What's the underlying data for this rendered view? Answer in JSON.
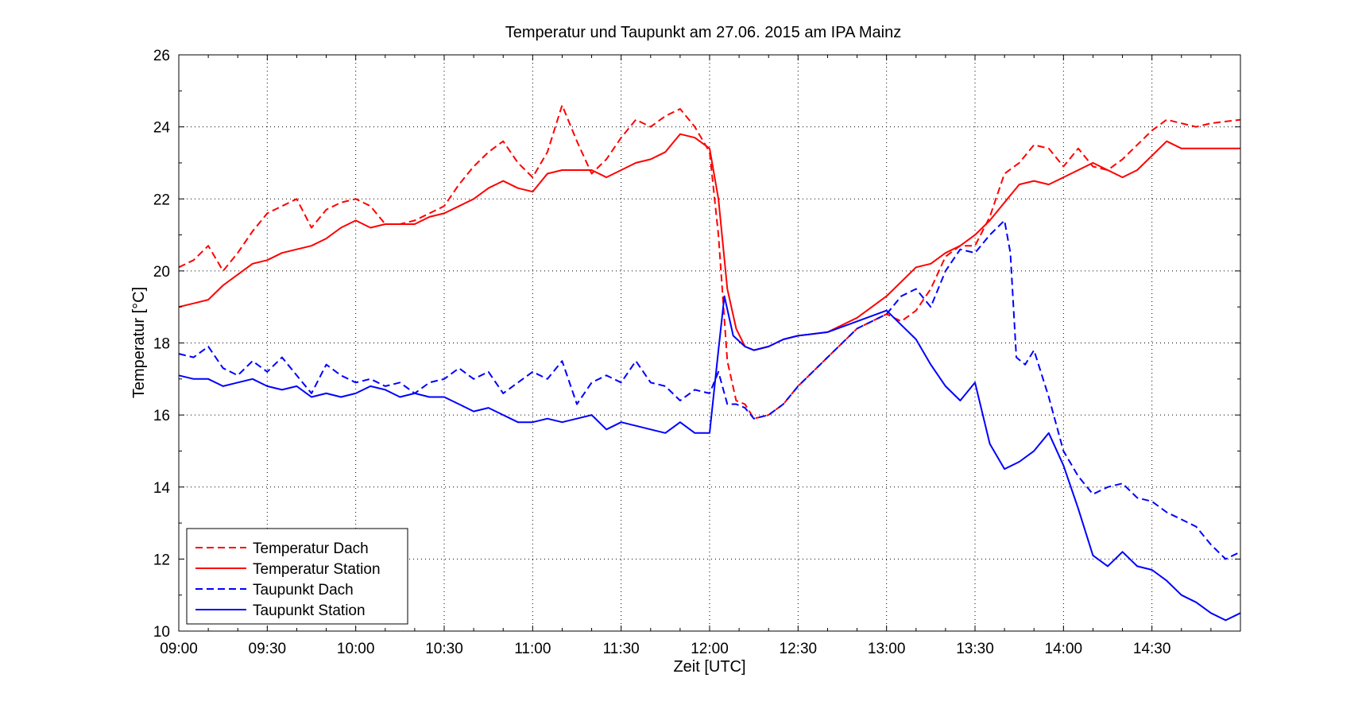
{
  "chart_data": {
    "type": "line",
    "title": "Temperatur und Taupunkt am 27.06. 2015 am IPA Mainz",
    "xlabel": "Zeit [UTC]",
    "ylabel": "Temperatur [°C]",
    "xlim": [
      "09:00",
      "15:00"
    ],
    "ylim": [
      10,
      26
    ],
    "x_ticks": [
      "09:00",
      "09:30",
      "10:00",
      "10:30",
      "11:00",
      "11:30",
      "12:00",
      "12:30",
      "13:00",
      "13:30",
      "14:00",
      "14:30"
    ],
    "y_ticks": [
      10,
      12,
      14,
      16,
      18,
      20,
      22,
      24,
      26
    ],
    "grid": true,
    "legend_position": "bottom-left",
    "series": [
      {
        "name": "Temperatur Dach",
        "color": "#ff0000",
        "style": "dashed",
        "points": [
          [
            "09:00",
            20.1
          ],
          [
            "09:05",
            20.3
          ],
          [
            "09:10",
            20.7
          ],
          [
            "09:15",
            20.0
          ],
          [
            "09:20",
            20.5
          ],
          [
            "09:25",
            21.1
          ],
          [
            "09:30",
            21.6
          ],
          [
            "09:35",
            21.8
          ],
          [
            "09:40",
            22.0
          ],
          [
            "09:45",
            21.2
          ],
          [
            "09:50",
            21.7
          ],
          [
            "09:55",
            21.9
          ],
          [
            "10:00",
            22.0
          ],
          [
            "10:05",
            21.8
          ],
          [
            "10:10",
            21.3
          ],
          [
            "10:15",
            21.3
          ],
          [
            "10:20",
            21.4
          ],
          [
            "10:25",
            21.6
          ],
          [
            "10:30",
            21.8
          ],
          [
            "10:35",
            22.4
          ],
          [
            "10:40",
            22.9
          ],
          [
            "10:45",
            23.3
          ],
          [
            "10:50",
            23.6
          ],
          [
            "10:55",
            23.0
          ],
          [
            "11:00",
            22.6
          ],
          [
            "11:05",
            23.3
          ],
          [
            "11:10",
            24.6
          ],
          [
            "11:15",
            23.6
          ],
          [
            "11:20",
            22.7
          ],
          [
            "11:25",
            23.1
          ],
          [
            "11:30",
            23.7
          ],
          [
            "11:35",
            24.2
          ],
          [
            "11:40",
            24.0
          ],
          [
            "11:45",
            24.3
          ],
          [
            "11:50",
            24.5
          ],
          [
            "11:55",
            24.0
          ],
          [
            "12:00",
            23.3
          ],
          [
            "12:03",
            21.0
          ],
          [
            "12:06",
            17.5
          ],
          [
            "12:09",
            16.4
          ],
          [
            "12:12",
            16.3
          ],
          [
            "12:15",
            15.9
          ],
          [
            "12:20",
            16.0
          ],
          [
            "12:25",
            16.3
          ],
          [
            "12:30",
            16.8
          ],
          [
            "12:40",
            17.6
          ],
          [
            "12:50",
            18.4
          ],
          [
            "13:00",
            18.8
          ],
          [
            "13:05",
            18.6
          ],
          [
            "13:10",
            18.9
          ],
          [
            "13:15",
            19.5
          ],
          [
            "13:20",
            20.4
          ],
          [
            "13:25",
            20.7
          ],
          [
            "13:30",
            20.7
          ],
          [
            "13:35",
            21.5
          ],
          [
            "13:40",
            22.7
          ],
          [
            "13:45",
            23.0
          ],
          [
            "13:50",
            23.5
          ],
          [
            "13:55",
            23.4
          ],
          [
            "14:00",
            22.9
          ],
          [
            "14:05",
            23.4
          ],
          [
            "14:10",
            22.9
          ],
          [
            "14:15",
            22.8
          ],
          [
            "14:20",
            23.1
          ],
          [
            "14:25",
            23.5
          ],
          [
            "14:30",
            23.9
          ],
          [
            "14:35",
            24.2
          ],
          [
            "14:40",
            24.1
          ],
          [
            "14:45",
            24.0
          ],
          [
            "14:50",
            24.1
          ],
          [
            "15:00",
            24.2
          ]
        ]
      },
      {
        "name": "Temperatur Station",
        "color": "#ff0000",
        "style": "solid",
        "points": [
          [
            "09:00",
            19.0
          ],
          [
            "09:05",
            19.1
          ],
          [
            "09:10",
            19.2
          ],
          [
            "09:15",
            19.6
          ],
          [
            "09:20",
            19.9
          ],
          [
            "09:25",
            20.2
          ],
          [
            "09:30",
            20.3
          ],
          [
            "09:35",
            20.5
          ],
          [
            "09:40",
            20.6
          ],
          [
            "09:45",
            20.7
          ],
          [
            "09:50",
            20.9
          ],
          [
            "09:55",
            21.2
          ],
          [
            "10:00",
            21.4
          ],
          [
            "10:05",
            21.2
          ],
          [
            "10:10",
            21.3
          ],
          [
            "10:15",
            21.3
          ],
          [
            "10:20",
            21.3
          ],
          [
            "10:25",
            21.5
          ],
          [
            "10:30",
            21.6
          ],
          [
            "10:35",
            21.8
          ],
          [
            "10:40",
            22.0
          ],
          [
            "10:45",
            22.3
          ],
          [
            "10:50",
            22.5
          ],
          [
            "10:55",
            22.3
          ],
          [
            "11:00",
            22.2
          ],
          [
            "11:05",
            22.7
          ],
          [
            "11:10",
            22.8
          ],
          [
            "11:15",
            22.8
          ],
          [
            "11:20",
            22.8
          ],
          [
            "11:25",
            22.6
          ],
          [
            "11:30",
            22.8
          ],
          [
            "11:35",
            23.0
          ],
          [
            "11:40",
            23.1
          ],
          [
            "11:45",
            23.3
          ],
          [
            "11:50",
            23.8
          ],
          [
            "11:55",
            23.7
          ],
          [
            "12:00",
            23.4
          ],
          [
            "12:03",
            22.0
          ],
          [
            "12:06",
            19.5
          ],
          [
            "12:09",
            18.4
          ],
          [
            "12:12",
            17.9
          ],
          [
            "12:15",
            17.8
          ],
          [
            "12:20",
            17.9
          ],
          [
            "12:25",
            18.1
          ],
          [
            "12:30",
            18.2
          ],
          [
            "12:40",
            18.3
          ],
          [
            "12:50",
            18.7
          ],
          [
            "13:00",
            19.3
          ],
          [
            "13:05",
            19.7
          ],
          [
            "13:10",
            20.1
          ],
          [
            "13:15",
            20.2
          ],
          [
            "13:20",
            20.5
          ],
          [
            "13:25",
            20.7
          ],
          [
            "13:30",
            21.0
          ],
          [
            "13:35",
            21.4
          ],
          [
            "13:40",
            21.9
          ],
          [
            "13:45",
            22.4
          ],
          [
            "13:50",
            22.5
          ],
          [
            "13:55",
            22.4
          ],
          [
            "14:00",
            22.6
          ],
          [
            "14:05",
            22.8
          ],
          [
            "14:10",
            23.0
          ],
          [
            "14:15",
            22.8
          ],
          [
            "14:20",
            22.6
          ],
          [
            "14:25",
            22.8
          ],
          [
            "14:30",
            23.2
          ],
          [
            "14:35",
            23.6
          ],
          [
            "14:40",
            23.4
          ],
          [
            "14:45",
            23.4
          ],
          [
            "14:50",
            23.4
          ],
          [
            "15:00",
            23.4
          ]
        ]
      },
      {
        "name": "Taupunkt Dach",
        "color": "#0000ff",
        "style": "dashed",
        "points": [
          [
            "09:00",
            17.7
          ],
          [
            "09:05",
            17.6
          ],
          [
            "09:10",
            17.9
          ],
          [
            "09:15",
            17.3
          ],
          [
            "09:20",
            17.1
          ],
          [
            "09:25",
            17.5
          ],
          [
            "09:30",
            17.2
          ],
          [
            "09:35",
            17.6
          ],
          [
            "09:40",
            17.1
          ],
          [
            "09:45",
            16.6
          ],
          [
            "09:50",
            17.4
          ],
          [
            "09:55",
            17.1
          ],
          [
            "10:00",
            16.9
          ],
          [
            "10:05",
            17.0
          ],
          [
            "10:10",
            16.8
          ],
          [
            "10:15",
            16.9
          ],
          [
            "10:20",
            16.6
          ],
          [
            "10:25",
            16.9
          ],
          [
            "10:30",
            17.0
          ],
          [
            "10:35",
            17.3
          ],
          [
            "10:40",
            17.0
          ],
          [
            "10:45",
            17.2
          ],
          [
            "10:50",
            16.6
          ],
          [
            "10:55",
            16.9
          ],
          [
            "11:00",
            17.2
          ],
          [
            "11:05",
            17.0
          ],
          [
            "11:10",
            17.5
          ],
          [
            "11:15",
            16.3
          ],
          [
            "11:20",
            16.9
          ],
          [
            "11:25",
            17.1
          ],
          [
            "11:30",
            16.9
          ],
          [
            "11:35",
            17.5
          ],
          [
            "11:40",
            16.9
          ],
          [
            "11:45",
            16.8
          ],
          [
            "11:50",
            16.4
          ],
          [
            "11:55",
            16.7
          ],
          [
            "12:00",
            16.6
          ],
          [
            "12:03",
            17.2
          ],
          [
            "12:06",
            16.3
          ],
          [
            "12:09",
            16.3
          ],
          [
            "12:12",
            16.2
          ],
          [
            "12:15",
            15.9
          ],
          [
            "12:20",
            16.0
          ],
          [
            "12:25",
            16.3
          ],
          [
            "12:30",
            16.8
          ],
          [
            "12:40",
            17.6
          ],
          [
            "12:50",
            18.4
          ],
          [
            "13:00",
            18.8
          ],
          [
            "13:05",
            19.3
          ],
          [
            "13:10",
            19.5
          ],
          [
            "13:15",
            19.0
          ],
          [
            "13:20",
            20.0
          ],
          [
            "13:25",
            20.6
          ],
          [
            "13:30",
            20.5
          ],
          [
            "13:35",
            21.0
          ],
          [
            "13:40",
            21.4
          ],
          [
            "13:42",
            20.5
          ],
          [
            "13:44",
            17.6
          ],
          [
            "13:47",
            17.4
          ],
          [
            "13:50",
            17.8
          ],
          [
            "13:55",
            16.5
          ],
          [
            "14:00",
            15.0
          ],
          [
            "14:05",
            14.3
          ],
          [
            "14:10",
            13.8
          ],
          [
            "14:15",
            14.0
          ],
          [
            "14:20",
            14.1
          ],
          [
            "14:25",
            13.7
          ],
          [
            "14:30",
            13.6
          ],
          [
            "14:35",
            13.3
          ],
          [
            "14:40",
            13.1
          ],
          [
            "14:45",
            12.9
          ],
          [
            "14:50",
            12.4
          ],
          [
            "14:55",
            12.0
          ],
          [
            "15:00",
            12.2
          ]
        ]
      },
      {
        "name": "Taupunkt Station",
        "color": "#0000ff",
        "style": "solid",
        "points": [
          [
            "09:00",
            17.1
          ],
          [
            "09:05",
            17.0
          ],
          [
            "09:10",
            17.0
          ],
          [
            "09:15",
            16.8
          ],
          [
            "09:20",
            16.9
          ],
          [
            "09:25",
            17.0
          ],
          [
            "09:30",
            16.8
          ],
          [
            "09:35",
            16.7
          ],
          [
            "09:40",
            16.8
          ],
          [
            "09:45",
            16.5
          ],
          [
            "09:50",
            16.6
          ],
          [
            "09:55",
            16.5
          ],
          [
            "10:00",
            16.6
          ],
          [
            "10:05",
            16.8
          ],
          [
            "10:10",
            16.7
          ],
          [
            "10:15",
            16.5
          ],
          [
            "10:20",
            16.6
          ],
          [
            "10:25",
            16.5
          ],
          [
            "10:30",
            16.5
          ],
          [
            "10:35",
            16.3
          ],
          [
            "10:40",
            16.1
          ],
          [
            "10:45",
            16.2
          ],
          [
            "10:50",
            16.0
          ],
          [
            "10:55",
            15.8
          ],
          [
            "11:00",
            15.8
          ],
          [
            "11:05",
            15.9
          ],
          [
            "11:10",
            15.8
          ],
          [
            "11:15",
            15.9
          ],
          [
            "11:20",
            16.0
          ],
          [
            "11:25",
            15.6
          ],
          [
            "11:30",
            15.8
          ],
          [
            "11:35",
            15.7
          ],
          [
            "11:40",
            15.6
          ],
          [
            "11:45",
            15.5
          ],
          [
            "11:50",
            15.8
          ],
          [
            "11:55",
            15.5
          ],
          [
            "12:00",
            15.5
          ],
          [
            "12:03",
            17.8
          ],
          [
            "12:05",
            19.3
          ],
          [
            "12:08",
            18.2
          ],
          [
            "12:12",
            17.9
          ],
          [
            "12:15",
            17.8
          ],
          [
            "12:20",
            17.9
          ],
          [
            "12:25",
            18.1
          ],
          [
            "12:30",
            18.2
          ],
          [
            "12:40",
            18.3
          ],
          [
            "12:50",
            18.6
          ],
          [
            "13:00",
            18.9
          ],
          [
            "13:05",
            18.5
          ],
          [
            "13:10",
            18.1
          ],
          [
            "13:15",
            17.4
          ],
          [
            "13:20",
            16.8
          ],
          [
            "13:25",
            16.4
          ],
          [
            "13:30",
            16.9
          ],
          [
            "13:35",
            15.2
          ],
          [
            "13:40",
            14.5
          ],
          [
            "13:45",
            14.7
          ],
          [
            "13:50",
            15.0
          ],
          [
            "13:55",
            15.5
          ],
          [
            "14:00",
            14.6
          ],
          [
            "14:05",
            13.4
          ],
          [
            "14:10",
            12.1
          ],
          [
            "14:15",
            11.8
          ],
          [
            "14:20",
            12.2
          ],
          [
            "14:25",
            11.8
          ],
          [
            "14:30",
            11.7
          ],
          [
            "14:35",
            11.4
          ],
          [
            "14:40",
            11.0
          ],
          [
            "14:45",
            10.8
          ],
          [
            "14:50",
            10.5
          ],
          [
            "14:55",
            10.3
          ],
          [
            "15:00",
            10.5
          ]
        ]
      }
    ]
  }
}
